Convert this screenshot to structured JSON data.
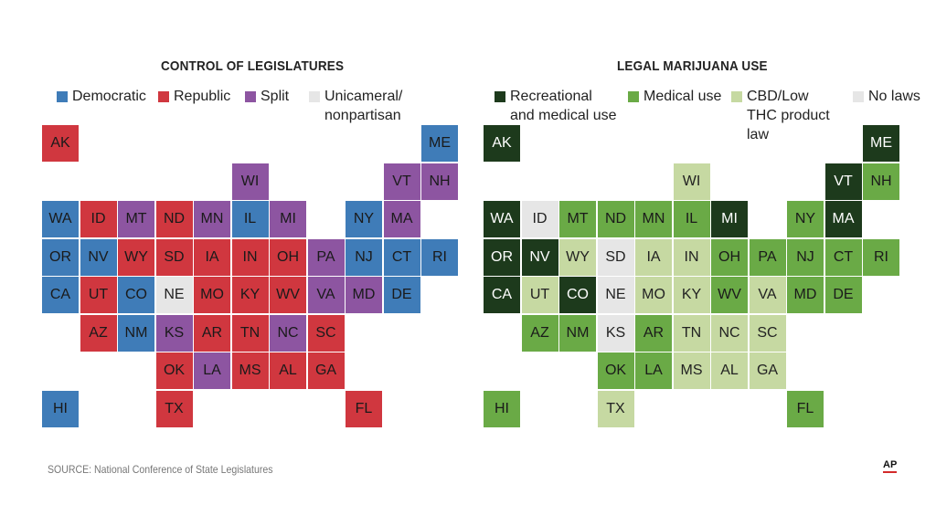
{
  "maps": [
    {
      "title": "CONTROL OF LEGISLATURES",
      "legend": [
        {
          "label": "Democratic",
          "color": "#3f7cb8"
        },
        {
          "label": "Republic",
          "color": "#d0373f"
        },
        {
          "label": "Split",
          "color": "#8d55a1"
        },
        {
          "label": "Unicameral/ nonpartisan",
          "color": "#e6e6e6"
        }
      ],
      "states": [
        {
          "abbr": "AK",
          "col": 0,
          "row": 0,
          "category": "Republic"
        },
        {
          "abbr": "ME",
          "col": 10,
          "row": 0,
          "category": "Democratic"
        },
        {
          "abbr": "WI",
          "col": 5,
          "row": 1,
          "category": "Split"
        },
        {
          "abbr": "VT",
          "col": 9,
          "row": 1,
          "category": "Split"
        },
        {
          "abbr": "NH",
          "col": 10,
          "row": 1,
          "category": "Split"
        },
        {
          "abbr": "WA",
          "col": 0,
          "row": 2,
          "category": "Democratic"
        },
        {
          "abbr": "ID",
          "col": 1,
          "row": 2,
          "category": "Republic"
        },
        {
          "abbr": "MT",
          "col": 2,
          "row": 2,
          "category": "Split"
        },
        {
          "abbr": "ND",
          "col": 3,
          "row": 2,
          "category": "Republic"
        },
        {
          "abbr": "MN",
          "col": 4,
          "row": 2,
          "category": "Split"
        },
        {
          "abbr": "IL",
          "col": 5,
          "row": 2,
          "category": "Democratic"
        },
        {
          "abbr": "MI",
          "col": 6,
          "row": 2,
          "category": "Split"
        },
        {
          "abbr": "NY",
          "col": 8,
          "row": 2,
          "category": "Democratic"
        },
        {
          "abbr": "MA",
          "col": 9,
          "row": 2,
          "category": "Split"
        },
        {
          "abbr": "OR",
          "col": 0,
          "row": 3,
          "category": "Democratic"
        },
        {
          "abbr": "NV",
          "col": 1,
          "row": 3,
          "category": "Democratic"
        },
        {
          "abbr": "WY",
          "col": 2,
          "row": 3,
          "category": "Republic"
        },
        {
          "abbr": "SD",
          "col": 3,
          "row": 3,
          "category": "Republic"
        },
        {
          "abbr": "IA",
          "col": 4,
          "row": 3,
          "category": "Republic"
        },
        {
          "abbr": "IN",
          "col": 5,
          "row": 3,
          "category": "Republic"
        },
        {
          "abbr": "OH",
          "col": 6,
          "row": 3,
          "category": "Republic"
        },
        {
          "abbr": "PA",
          "col": 7,
          "row": 3,
          "category": "Split"
        },
        {
          "abbr": "NJ",
          "col": 8,
          "row": 3,
          "category": "Democratic"
        },
        {
          "abbr": "CT",
          "col": 9,
          "row": 3,
          "category": "Democratic"
        },
        {
          "abbr": "RI",
          "col": 10,
          "row": 3,
          "category": "Democratic"
        },
        {
          "abbr": "CA",
          "col": 0,
          "row": 4,
          "category": "Democratic"
        },
        {
          "abbr": "UT",
          "col": 1,
          "row": 4,
          "category": "Republic"
        },
        {
          "abbr": "CO",
          "col": 2,
          "row": 4,
          "category": "Democratic"
        },
        {
          "abbr": "NE",
          "col": 3,
          "row": 4,
          "category": "Unicameral/ nonpartisan"
        },
        {
          "abbr": "MO",
          "col": 4,
          "row": 4,
          "category": "Republic"
        },
        {
          "abbr": "KY",
          "col": 5,
          "row": 4,
          "category": "Republic"
        },
        {
          "abbr": "WV",
          "col": 6,
          "row": 4,
          "category": "Republic"
        },
        {
          "abbr": "VA",
          "col": 7,
          "row": 4,
          "category": "Split"
        },
        {
          "abbr": "MD",
          "col": 8,
          "row": 4,
          "category": "Split"
        },
        {
          "abbr": "DE",
          "col": 9,
          "row": 4,
          "category": "Democratic"
        },
        {
          "abbr": "AZ",
          "col": 1,
          "row": 5,
          "category": "Republic"
        },
        {
          "abbr": "NM",
          "col": 2,
          "row": 5,
          "category": "Democratic"
        },
        {
          "abbr": "KS",
          "col": 3,
          "row": 5,
          "category": "Split"
        },
        {
          "abbr": "AR",
          "col": 4,
          "row": 5,
          "category": "Republic"
        },
        {
          "abbr": "TN",
          "col": 5,
          "row": 5,
          "category": "Republic"
        },
        {
          "abbr": "NC",
          "col": 6,
          "row": 5,
          "category": "Split"
        },
        {
          "abbr": "SC",
          "col": 7,
          "row": 5,
          "category": "Republic"
        },
        {
          "abbr": "OK",
          "col": 3,
          "row": 6,
          "category": "Republic"
        },
        {
          "abbr": "LA",
          "col": 4,
          "row": 6,
          "category": "Split"
        },
        {
          "abbr": "MS",
          "col": 5,
          "row": 6,
          "category": "Republic"
        },
        {
          "abbr": "AL",
          "col": 6,
          "row": 6,
          "category": "Republic"
        },
        {
          "abbr": "GA",
          "col": 7,
          "row": 6,
          "category": "Republic"
        },
        {
          "abbr": "HI",
          "col": 0,
          "row": 7,
          "category": "Democratic"
        },
        {
          "abbr": "TX",
          "col": 3,
          "row": 7,
          "category": "Republic"
        },
        {
          "abbr": "FL",
          "col": 8,
          "row": 7,
          "category": "Republic"
        }
      ]
    },
    {
      "title": "LEGAL MARIJUANA USE",
      "legend": [
        {
          "label": "Recreational and medical use",
          "color": "#1d3a1c"
        },
        {
          "label": "Medical use",
          "color": "#6aaa46"
        },
        {
          "label": "CBD/Low THC product law",
          "color": "#c6d9a2"
        },
        {
          "label": "No laws",
          "color": "#e6e6e6"
        }
      ],
      "states": [
        {
          "abbr": "AK",
          "col": 0,
          "row": 0,
          "category": "Recreational and medical use"
        },
        {
          "abbr": "ME",
          "col": 10,
          "row": 0,
          "category": "Recreational and medical use"
        },
        {
          "abbr": "WI",
          "col": 5,
          "row": 1,
          "category": "CBD/Low THC product law"
        },
        {
          "abbr": "VT",
          "col": 9,
          "row": 1,
          "category": "Recreational and medical use"
        },
        {
          "abbr": "NH",
          "col": 10,
          "row": 1,
          "category": "Medical use"
        },
        {
          "abbr": "WA",
          "col": 0,
          "row": 2,
          "category": "Recreational and medical use"
        },
        {
          "abbr": "ID",
          "col": 1,
          "row": 2,
          "category": "No laws"
        },
        {
          "abbr": "MT",
          "col": 2,
          "row": 2,
          "category": "Medical use"
        },
        {
          "abbr": "ND",
          "col": 3,
          "row": 2,
          "category": "Medical use"
        },
        {
          "abbr": "MN",
          "col": 4,
          "row": 2,
          "category": "Medical use"
        },
        {
          "abbr": "IL",
          "col": 5,
          "row": 2,
          "category": "Medical use"
        },
        {
          "abbr": "MI",
          "col": 6,
          "row": 2,
          "category": "Recreational and medical use"
        },
        {
          "abbr": "NY",
          "col": 8,
          "row": 2,
          "category": "Medical use"
        },
        {
          "abbr": "MA",
          "col": 9,
          "row": 2,
          "category": "Recreational and medical use"
        },
        {
          "abbr": "OR",
          "col": 0,
          "row": 3,
          "category": "Recreational and medical use"
        },
        {
          "abbr": "NV",
          "col": 1,
          "row": 3,
          "category": "Recreational and medical use"
        },
        {
          "abbr": "WY",
          "col": 2,
          "row": 3,
          "category": "CBD/Low THC product law"
        },
        {
          "abbr": "SD",
          "col": 3,
          "row": 3,
          "category": "No laws"
        },
        {
          "abbr": "IA",
          "col": 4,
          "row": 3,
          "category": "CBD/Low THC product law"
        },
        {
          "abbr": "IN",
          "col": 5,
          "row": 3,
          "category": "CBD/Low THC product law"
        },
        {
          "abbr": "OH",
          "col": 6,
          "row": 3,
          "category": "Medical use"
        },
        {
          "abbr": "PA",
          "col": 7,
          "row": 3,
          "category": "Medical use"
        },
        {
          "abbr": "NJ",
          "col": 8,
          "row": 3,
          "category": "Medical use"
        },
        {
          "abbr": "CT",
          "col": 9,
          "row": 3,
          "category": "Medical use"
        },
        {
          "abbr": "RI",
          "col": 10,
          "row": 3,
          "category": "Medical use"
        },
        {
          "abbr": "CA",
          "col": 0,
          "row": 4,
          "category": "Recreational and medical use"
        },
        {
          "abbr": "UT",
          "col": 1,
          "row": 4,
          "category": "CBD/Low THC product law"
        },
        {
          "abbr": "CO",
          "col": 2,
          "row": 4,
          "category": "Recreational and medical use"
        },
        {
          "abbr": "NE",
          "col": 3,
          "row": 4,
          "category": "No laws"
        },
        {
          "abbr": "MO",
          "col": 4,
          "row": 4,
          "category": "CBD/Low THC product law"
        },
        {
          "abbr": "KY",
          "col": 5,
          "row": 4,
          "category": "CBD/Low THC product law"
        },
        {
          "abbr": "WV",
          "col": 6,
          "row": 4,
          "category": "Medical use"
        },
        {
          "abbr": "VA",
          "col": 7,
          "row": 4,
          "category": "CBD/Low THC product law"
        },
        {
          "abbr": "MD",
          "col": 8,
          "row": 4,
          "category": "Medical use"
        },
        {
          "abbr": "DE",
          "col": 9,
          "row": 4,
          "category": "Medical use"
        },
        {
          "abbr": "AZ",
          "col": 1,
          "row": 5,
          "category": "Medical use"
        },
        {
          "abbr": "NM",
          "col": 2,
          "row": 5,
          "category": "Medical use"
        },
        {
          "abbr": "KS",
          "col": 3,
          "row": 5,
          "category": "No laws"
        },
        {
          "abbr": "AR",
          "col": 4,
          "row": 5,
          "category": "Medical use"
        },
        {
          "abbr": "TN",
          "col": 5,
          "row": 5,
          "category": "CBD/Low THC product law"
        },
        {
          "abbr": "NC",
          "col": 6,
          "row": 5,
          "category": "CBD/Low THC product law"
        },
        {
          "abbr": "SC",
          "col": 7,
          "row": 5,
          "category": "CBD/Low THC product law"
        },
        {
          "abbr": "OK",
          "col": 3,
          "row": 6,
          "category": "Medical use"
        },
        {
          "abbr": "LA",
          "col": 4,
          "row": 6,
          "category": "Medical use"
        },
        {
          "abbr": "MS",
          "col": 5,
          "row": 6,
          "category": "CBD/Low THC product law"
        },
        {
          "abbr": "AL",
          "col": 6,
          "row": 6,
          "category": "CBD/Low THC product law"
        },
        {
          "abbr": "GA",
          "col": 7,
          "row": 6,
          "category": "CBD/Low THC product law"
        },
        {
          "abbr": "HI",
          "col": 0,
          "row": 7,
          "category": "Medical use"
        },
        {
          "abbr": "TX",
          "col": 3,
          "row": 7,
          "category": "CBD/Low THC product law"
        },
        {
          "abbr": "FL",
          "col": 8,
          "row": 7,
          "category": "Medical use"
        }
      ]
    }
  ],
  "source": "SOURCE: National Conference of State Legislatures",
  "credit": "AP"
}
